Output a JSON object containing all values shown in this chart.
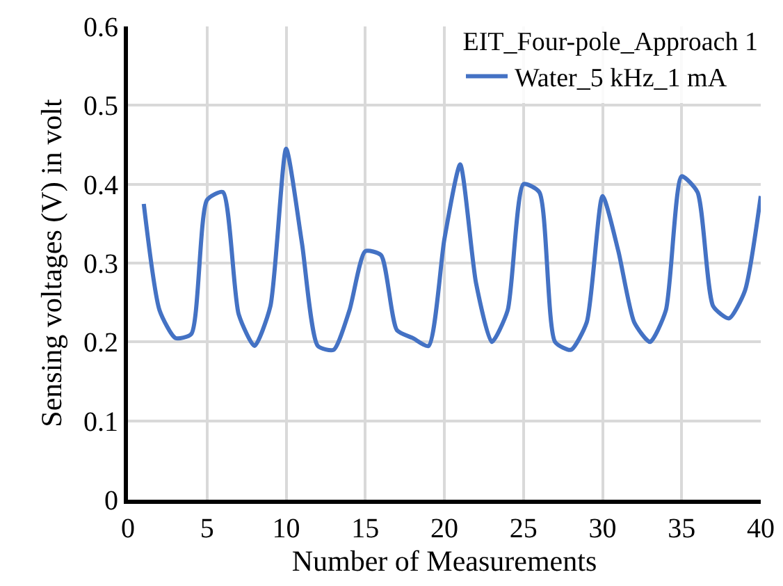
{
  "chart_data": {
    "type": "line",
    "xlabel": "Number of Measurements",
    "ylabel": "Sensing voltages (V) in volt",
    "legend_title": "EIT_Four-pole_Approach 1",
    "legend": "top right",
    "grid": true,
    "xlim": [
      0,
      40
    ],
    "xticks": [
      0,
      5,
      10,
      15,
      20,
      25,
      30,
      35,
      40
    ],
    "ylim": [
      0,
      0.6
    ],
    "yticks": [
      0,
      0.1,
      0.2,
      0.3,
      0.4,
      0.5,
      0.6
    ],
    "x": [
      1,
      2,
      3,
      4,
      5,
      6,
      7,
      8,
      9,
      10,
      11,
      12,
      13,
      14,
      15,
      16,
      17,
      18,
      19,
      20,
      21,
      22,
      23,
      24,
      25,
      26,
      27,
      28,
      29,
      30,
      31,
      32,
      33,
      34,
      35,
      36,
      37,
      38,
      39,
      40
    ],
    "series": [
      {
        "name": "Water_5 kHz_1 mA",
        "color": "#4472c4",
        "values": [
          0.375,
          0.24,
          0.205,
          0.21,
          0.38,
          0.39,
          0.235,
          0.195,
          0.245,
          0.445,
          0.325,
          0.195,
          0.19,
          0.24,
          0.315,
          0.31,
          0.215,
          0.205,
          0.195,
          0.33,
          0.425,
          0.275,
          0.2,
          0.24,
          0.4,
          0.39,
          0.2,
          0.19,
          0.225,
          0.385,
          0.315,
          0.225,
          0.2,
          0.24,
          0.41,
          0.39,
          0.245,
          0.23,
          0.265,
          0.385
        ]
      }
    ]
  }
}
